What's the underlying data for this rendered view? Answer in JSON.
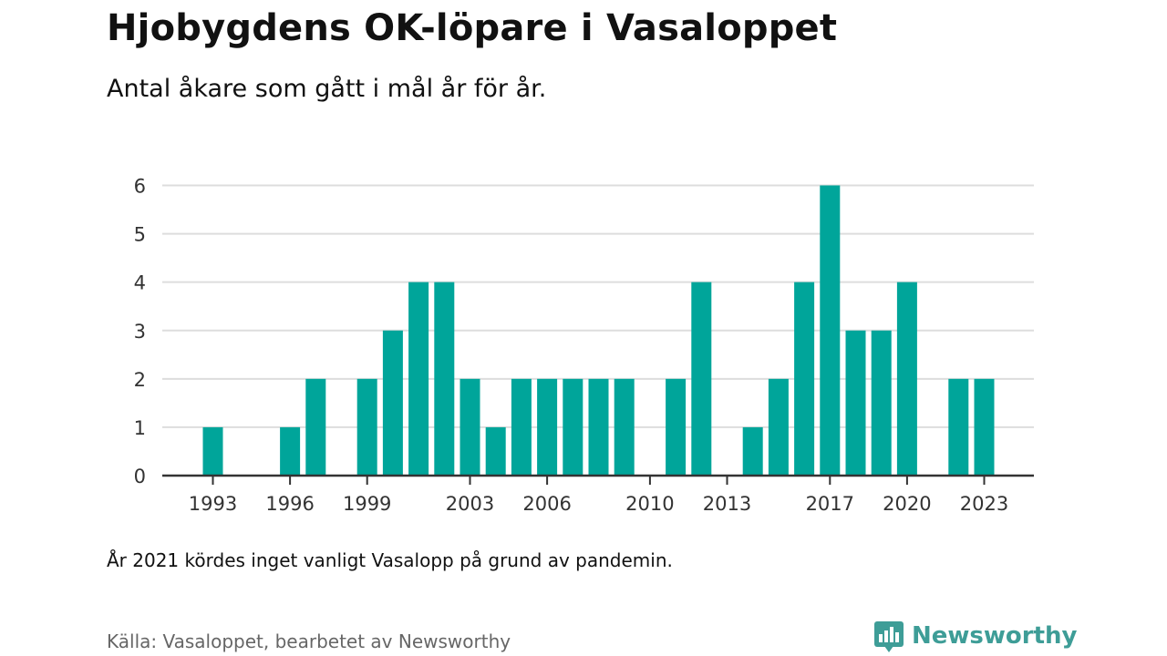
{
  "header": {
    "title": "Hjobygdens OK-löpare i Vasaloppet",
    "subtitle": "Antal åkare som gått i mål år för år."
  },
  "footer": {
    "note": "År 2021 kördes inget vanligt Vasalopp på grund av pandemin.",
    "source": "Källa: Vasaloppet, bearbetet av Newsworthy",
    "brand": "Newsworthy"
  },
  "colors": {
    "bar": "#00a59a",
    "grid": "#dddddd",
    "axis": "#333333",
    "brand": "#3e9d97"
  },
  "chart_data": {
    "type": "bar",
    "x": [
      1993,
      1994,
      1995,
      1996,
      1997,
      1998,
      1999,
      2000,
      2001,
      2002,
      2003,
      2004,
      2005,
      2006,
      2007,
      2008,
      2009,
      2010,
      2011,
      2012,
      2013,
      2014,
      2015,
      2016,
      2017,
      2018,
      2019,
      2020,
      2021,
      2022,
      2023
    ],
    "values": [
      1,
      0,
      0,
      1,
      2,
      0,
      2,
      3,
      4,
      4,
      2,
      1,
      2,
      2,
      2,
      2,
      2,
      0,
      2,
      4,
      0,
      1,
      2,
      4,
      6,
      3,
      3,
      4,
      0,
      2,
      2
    ],
    "xticks": [
      1993,
      1996,
      1999,
      2003,
      2006,
      2010,
      2013,
      2017,
      2020,
      2023
    ],
    "yticks": [
      0,
      1,
      2,
      3,
      4,
      5,
      6
    ],
    "ylim": [
      0,
      6
    ],
    "grid": true,
    "title": "Hjobygdens OK-löpare i Vasaloppet",
    "xlabel": "",
    "ylabel": ""
  }
}
